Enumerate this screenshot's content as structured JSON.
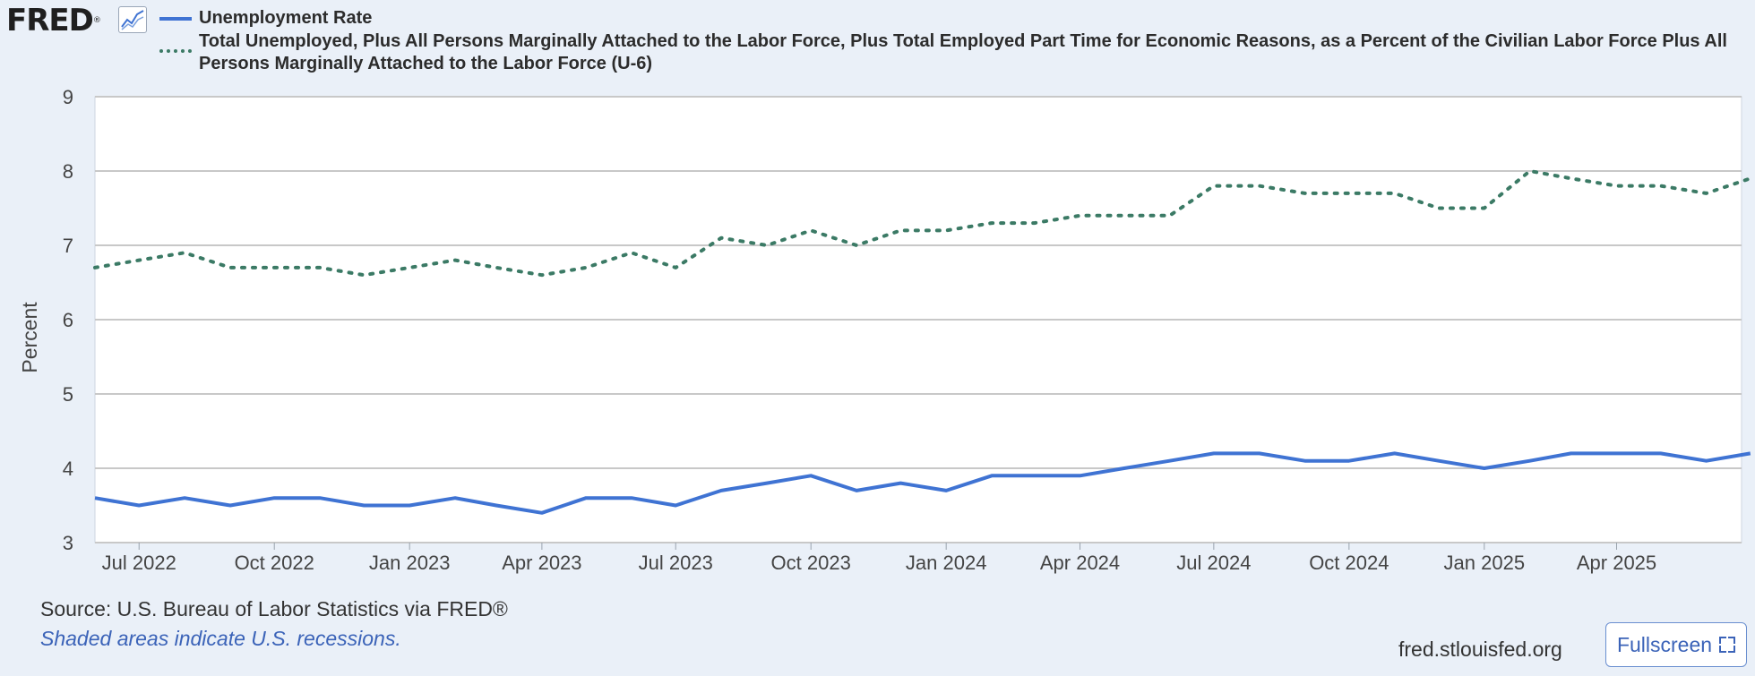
{
  "header": {
    "logo_text": "FRED",
    "logo_icon": "line-chart-icon"
  },
  "footer": {
    "source": "Source: U.S. Bureau of Labor Statistics via FRED®",
    "recession_note": "Shaded areas indicate U.S. recessions.",
    "url": "fred.stlouisfed.org",
    "fullscreen_label": "Fullscreen",
    "fullscreen_icon": "expand-icon"
  },
  "chart_data": {
    "type": "line",
    "title": "",
    "xlabel": "",
    "ylabel": "Percent",
    "ylim": [
      3,
      9
    ],
    "yticks": [
      3,
      4,
      5,
      6,
      7,
      8,
      9
    ],
    "grid": true,
    "legend_position": "top",
    "x": [
      "2022-06",
      "2022-07",
      "2022-08",
      "2022-09",
      "2022-10",
      "2022-11",
      "2022-12",
      "2023-01",
      "2023-02",
      "2023-03",
      "2023-04",
      "2023-05",
      "2023-06",
      "2023-07",
      "2023-08",
      "2023-09",
      "2023-10",
      "2023-11",
      "2023-12",
      "2024-01",
      "2024-02",
      "2024-03",
      "2024-04",
      "2024-05",
      "2024-06",
      "2024-07",
      "2024-08",
      "2024-09",
      "2024-10",
      "2024-11",
      "2024-12",
      "2025-01",
      "2025-02",
      "2025-03",
      "2025-04",
      "2025-05",
      "2025-06",
      "2025-07"
    ],
    "xticks": [
      {
        "label": "Jul 2022",
        "date": "2022-07"
      },
      {
        "label": "Oct 2022",
        "date": "2022-10"
      },
      {
        "label": "Jan 2023",
        "date": "2023-01"
      },
      {
        "label": "Apr 2023",
        "date": "2023-04"
      },
      {
        "label": "Jul 2023",
        "date": "2023-07"
      },
      {
        "label": "Oct 2023",
        "date": "2023-10"
      },
      {
        "label": "Jan 2024",
        "date": "2024-01"
      },
      {
        "label": "Apr 2024",
        "date": "2024-04"
      },
      {
        "label": "Jul 2024",
        "date": "2024-07"
      },
      {
        "label": "Oct 2024",
        "date": "2024-10"
      },
      {
        "label": "Jan 2025",
        "date": "2025-01"
      },
      {
        "label": "Apr 2025",
        "date": "2025-04"
      }
    ],
    "series": [
      {
        "name": "Unemployment Rate",
        "color": "#3f73d3",
        "style": "solid",
        "values": [
          3.6,
          3.5,
          3.6,
          3.5,
          3.6,
          3.6,
          3.5,
          3.5,
          3.6,
          3.5,
          3.4,
          3.6,
          3.6,
          3.5,
          3.7,
          3.8,
          3.9,
          3.7,
          3.8,
          3.7,
          3.9,
          3.9,
          3.9,
          4.0,
          4.1,
          4.2,
          4.2,
          4.1,
          4.1,
          4.2,
          4.1,
          4.0,
          4.1,
          4.2,
          4.2,
          4.2,
          4.1,
          4.2
        ]
      },
      {
        "name": "Total Unemployed, Plus All Persons Marginally Attached to the Labor Force, Plus Total Employed Part Time for Economic Reasons, as a Percent of the Civilian Labor Force Plus All Persons Marginally Attached to the Labor Force (U-6)",
        "color": "#3b7a65",
        "style": "dotted",
        "values": [
          6.7,
          6.8,
          6.9,
          6.7,
          6.7,
          6.7,
          6.6,
          6.7,
          6.8,
          6.7,
          6.6,
          6.7,
          6.9,
          6.7,
          7.1,
          7.0,
          7.2,
          7.0,
          7.2,
          7.2,
          7.3,
          7.3,
          7.4,
          7.4,
          7.4,
          7.8,
          7.8,
          7.7,
          7.7,
          7.7,
          7.5,
          7.5,
          8.0,
          7.9,
          7.8,
          7.8,
          7.7,
          7.9
        ]
      }
    ]
  }
}
